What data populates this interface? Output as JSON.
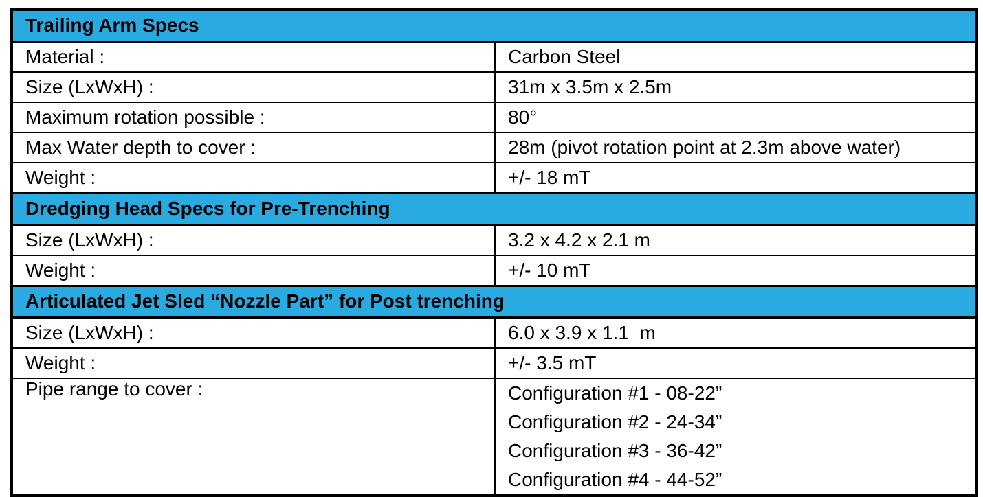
{
  "table": {
    "header_bg_color": "#29ABE2",
    "border_color": "#000000",
    "sections": [
      {
        "title": "Trailing Arm Specs",
        "rows": [
          {
            "label": "Material :",
            "values": [
              "Carbon Steel"
            ]
          },
          {
            "label": "Size (LxWxH) :",
            "values": [
              "31m x 3.5m x 2.5m"
            ]
          },
          {
            "label": "Maximum rotation possible :",
            "values": [
              "80°"
            ]
          },
          {
            "label": "Max Water depth to cover :",
            "values": [
              "28m (pivot rotation point at 2.3m above water)"
            ]
          },
          {
            "label": "Weight :",
            "values": [
              "+/- 18 mT"
            ]
          }
        ]
      },
      {
        "title": "Dredging Head Specs for Pre-Trenching",
        "rows": [
          {
            "label": "Size (LxWxH) :",
            "values": [
              "3.2 x 4.2 x 2.1 m"
            ]
          },
          {
            "label": "Weight :",
            "values": [
              "+/- 10 mT"
            ]
          }
        ]
      },
      {
        "title": "Articulated Jet Sled “Nozzle Part” for Post trenching",
        "rows": [
          {
            "label": "Size (LxWxH) :",
            "values": [
              "6.0 x 3.9 x 1.1  m"
            ]
          },
          {
            "label": "Weight :",
            "values": [
              "+/- 3.5 mT"
            ]
          },
          {
            "label": "Pipe range to cover :",
            "values": [
              "Configuration #1 - 08-22”",
              "Configuration #2 - 24-34”",
              "Configuration #3 - 36-42”",
              "Configuration #4 - 44-52”"
            ]
          }
        ]
      }
    ]
  }
}
